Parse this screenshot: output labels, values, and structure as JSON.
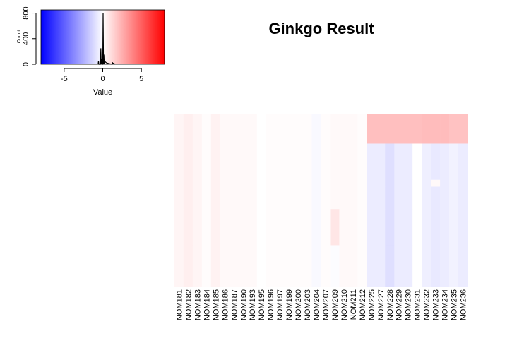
{
  "title": "Ginkgo Result",
  "chart_data": [
    {
      "type": "heatmap",
      "title": "Ginkgo Result",
      "columns": [
        "NOM181",
        "NOM182",
        "NOM183",
        "NOM184",
        "NOM185",
        "NOM186",
        "NOM187",
        "NOM190",
        "NOM193",
        "NOM195",
        "NOM196",
        "NOM197",
        "NOM199",
        "NOM200",
        "NOM203",
        "NOM204",
        "NOM207",
        "NOM209",
        "NOM210",
        "NOM211",
        "NOM212",
        "NOM225",
        "NOM227",
        "NOM228",
        "NOM229",
        "NOM230",
        "NOM231",
        "NOM232",
        "NOM233",
        "NOM234",
        "NOM235",
        "NOM236"
      ],
      "row_count": 6,
      "values": [
        [
          0.3,
          0.5,
          0.3,
          0.1,
          0.4,
          0.2,
          0.2,
          0.2,
          0.2,
          0.0,
          0.1,
          0.1,
          0.1,
          0.1,
          0.1,
          -0.2,
          0.1,
          0.2,
          0.2,
          0.2,
          0.1,
          2.0,
          2.0,
          2.0,
          2.0,
          2.0,
          2.0,
          2.1,
          2.1,
          2.1,
          1.9,
          1.9
        ],
        [
          0.3,
          0.5,
          0.3,
          0.1,
          0.4,
          0.2,
          0.2,
          0.2,
          0.2,
          0.0,
          0.1,
          0.1,
          0.1,
          0.1,
          0.1,
          -0.2,
          0.1,
          0.2,
          0.2,
          0.2,
          0.1,
          -0.6,
          -0.6,
          -1.0,
          -0.6,
          -0.6,
          0.0,
          -0.5,
          -0.7,
          -0.6,
          -0.4,
          -0.6
        ],
        [
          0.3,
          0.5,
          0.3,
          0.1,
          0.4,
          0.2,
          0.2,
          0.2,
          0.2,
          0.0,
          0.1,
          0.1,
          0.1,
          0.1,
          0.1,
          -0.2,
          0.1,
          0.2,
          0.2,
          0.2,
          0.1,
          -0.6,
          -0.6,
          -1.0,
          -0.6,
          -0.6,
          0.0,
          -0.5,
          0.2,
          -0.6,
          -0.4,
          -0.6
        ],
        [
          0.3,
          0.5,
          0.3,
          0.1,
          0.4,
          0.2,
          0.2,
          0.2,
          0.2,
          0.0,
          0.1,
          0.1,
          0.1,
          0.1,
          0.1,
          -0.2,
          0.1,
          0.2,
          0.2,
          0.2,
          0.1,
          -0.6,
          -0.6,
          -1.0,
          -0.6,
          -0.6,
          0.0,
          -0.5,
          -0.7,
          -0.6,
          -0.4,
          -0.6
        ],
        [
          0.3,
          0.5,
          0.3,
          0.1,
          0.4,
          0.2,
          0.2,
          0.2,
          0.2,
          0.0,
          0.1,
          0.1,
          0.1,
          0.1,
          0.1,
          -0.2,
          0.1,
          0.8,
          0.2,
          0.2,
          0.1,
          -0.6,
          -0.6,
          -1.0,
          -0.6,
          -0.6,
          0.0,
          -0.5,
          -0.7,
          -0.6,
          -0.4,
          -0.6
        ],
        [
          0.3,
          0.5,
          0.3,
          0.1,
          0.4,
          0.2,
          0.2,
          0.2,
          0.2,
          0.0,
          0.1,
          0.1,
          0.1,
          0.1,
          0.1,
          -0.2,
          0.1,
          -0.1,
          0.2,
          0.2,
          0.1,
          -0.6,
          -0.6,
          -1.0,
          -0.6,
          -0.6,
          0.0,
          -0.5,
          -0.7,
          -0.6,
          -0.4,
          -0.6
        ]
      ],
      "row_fractions": [
        0.17,
        0.21,
        0.04,
        0.13,
        0.21,
        0.24
      ],
      "color_range": [
        -8,
        8
      ],
      "colors": {
        "low": "#0000ff",
        "mid": "#ffffff",
        "high": "#ff0000"
      }
    },
    {
      "type": "line",
      "role": "color-key histogram",
      "xlabel": "Value",
      "ylabel": "Count",
      "xticks": [
        -5,
        0,
        5
      ],
      "yticks": [
        0,
        400,
        800
      ],
      "xlim": [
        -8,
        8
      ],
      "ylim": [
        0,
        850
      ],
      "x": [
        -0.6,
        -0.55,
        -0.5,
        -0.3,
        -0.25,
        -0.2,
        -0.15,
        -0.1,
        -0.05,
        0.0,
        0.05,
        0.1,
        0.15,
        0.2,
        0.3,
        0.5,
        0.8,
        1.2,
        1.25,
        1.3,
        1.4,
        1.6
      ],
      "y": [
        0,
        50,
        0,
        0,
        250,
        0,
        30,
        80,
        0,
        0,
        800,
        0,
        150,
        0,
        40,
        20,
        10,
        0,
        30,
        10,
        15,
        0
      ]
    }
  ]
}
